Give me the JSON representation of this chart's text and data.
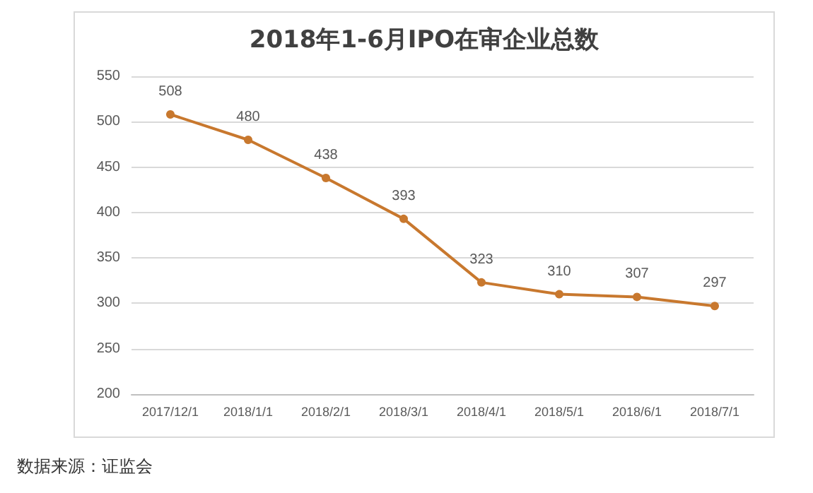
{
  "chart_data": {
    "type": "line",
    "title": "2018年1-6月IPO在审企业总数",
    "categories": [
      "2017/12/1",
      "2018/1/1",
      "2018/2/1",
      "2018/3/1",
      "2018/4/1",
      "2018/5/1",
      "2018/6/1",
      "2018/7/1"
    ],
    "series": [
      {
        "color": "#c8782e",
        "values": [
          508,
          480,
          438,
          393,
          323,
          310,
          307,
          297
        ]
      }
    ],
    "ylim": [
      200,
      550
    ],
    "yticks": [
      200,
      250,
      300,
      350,
      400,
      450,
      500,
      550
    ],
    "grid": "y",
    "marker": "circle",
    "line_style": "solid",
    "data_labels": true,
    "annotations": [
      "数据来源：证监会"
    ]
  }
}
